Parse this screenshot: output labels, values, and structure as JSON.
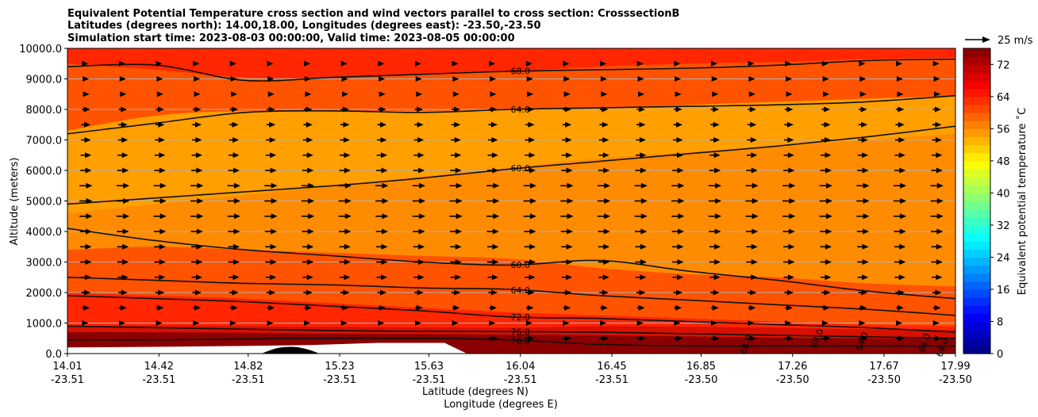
{
  "chart_data": {
    "type": "heatmap",
    "title_lines": [
      "Equivalent Potential Temperature cross section and wind vectors parallel to cross section: CrosssectionB",
      "Latitudes (degrees north): 14.00,18.00, Longitudes (degrees east): -23.50,-23.50",
      "Simulation start time: 2023-08-03 00:00:00, Valid time: 2023-08-05 00:00:00"
    ],
    "xlabel": "Latitude (degrees N)",
    "xlabel2": "Longitude (degrees E)",
    "ylabel": "Altitude (meters)",
    "xlim": [
      14.01,
      17.99
    ],
    "ylim": [
      0,
      10000
    ],
    "x_ticks": [
      {
        "lat": "14.01",
        "lon": "-23.51",
        "value": 14.01
      },
      {
        "lat": "14.42",
        "lon": "-23.51",
        "value": 14.42
      },
      {
        "lat": "14.82",
        "lon": "-23.51",
        "value": 14.82
      },
      {
        "lat": "15.23",
        "lon": "-23.51",
        "value": 15.23
      },
      {
        "lat": "15.63",
        "lon": "-23.51",
        "value": 15.63
      },
      {
        "lat": "16.04",
        "lon": "-23.51",
        "value": 16.04
      },
      {
        "lat": "16.45",
        "lon": "-23.51",
        "value": 16.45
      },
      {
        "lat": "16.85",
        "lon": "-23.50",
        "value": 16.85
      },
      {
        "lat": "17.26",
        "lon": "-23.50",
        "value": 17.26
      },
      {
        "lat": "17.67",
        "lon": "-23.50",
        "value": 17.67
      },
      {
        "lat": "17.99",
        "lon": "-23.50",
        "value": 17.99
      }
    ],
    "y_ticks": [
      {
        "label": "0.0",
        "value": 0
      },
      {
        "label": "1000.0",
        "value": 1000
      },
      {
        "label": "2000.0",
        "value": 2000
      },
      {
        "label": "3000.0",
        "value": 3000
      },
      {
        "label": "4000.0",
        "value": 4000
      },
      {
        "label": "5000.0",
        "value": 5000
      },
      {
        "label": "6000.0",
        "value": 6000
      },
      {
        "label": "7000.0",
        "value": 7000
      },
      {
        "label": "8000.0",
        "value": 8000
      },
      {
        "label": "9000.0",
        "value": 9000
      },
      {
        "label": "10000.0",
        "value": 10000
      }
    ],
    "colorbar": {
      "label": "Equivalent potential temperature ˚C",
      "range": [
        0,
        76
      ],
      "ticks": [
        "0",
        "8",
        "16",
        "24",
        "32",
        "40",
        "48",
        "56",
        "64",
        "72"
      ],
      "tick_values": [
        0,
        8,
        16,
        24,
        32,
        40,
        48,
        56,
        64,
        72
      ]
    },
    "quiver_key": {
      "label": "25 m/s",
      "speed": 25
    },
    "fill_bands": [
      {
        "value": 76,
        "color": "#8b0000",
        "ys": [
          700,
          700,
          680,
          650,
          640,
          620,
          600,
          560,
          520,
          500,
          480
        ]
      },
      {
        "value": 72,
        "color": "#d81000",
        "ys": [
          900,
          920,
          900,
          880,
          860,
          850,
          900,
          880,
          850,
          800,
          780
        ]
      },
      {
        "value": 68,
        "color": "#ff2600",
        "ys": [
          2000,
          1900,
          1800,
          1650,
          1500,
          1350,
          1250,
          1150,
          1050,
          950,
          900
        ]
      },
      {
        "value": 64,
        "color": "#ff5300",
        "ys": [
          3400,
          3500,
          3400,
          3300,
          3200,
          3100,
          2800,
          2600,
          2500,
          2300,
          2200
        ]
      },
      {
        "value": 60,
        "color": "#ff8c00",
        "ys": [
          4600,
          4900,
          5200,
          5500,
          5800,
          6100,
          6400,
          6600,
          6800,
          7000,
          7200
        ]
      },
      {
        "value": 64,
        "color": "#ff5300",
        "ys": [
          7300,
          7800,
          7950,
          7950,
          7950,
          8000,
          8050,
          8150,
          8250,
          8350,
          8450
        ]
      },
      {
        "value": 68,
        "color": "#ff2600",
        "ys": [
          9500,
          9300,
          9050,
          9050,
          9150,
          9250,
          9400,
          9500,
          9550,
          9650,
          9700
        ]
      }
    ],
    "contours": [
      {
        "label": "68.0",
        "label_x": 16.04,
        "ys": [
          9400,
          9450,
          8950,
          9050,
          9150,
          9250,
          9300,
          9350,
          9450,
          9600,
          9650
        ]
      },
      {
        "label": "64.0",
        "label_x": 16.04,
        "ys": [
          7200,
          7550,
          7900,
          7950,
          7900,
          8000,
          8050,
          8100,
          8150,
          8250,
          8450
        ]
      },
      {
        "label": "60.0",
        "label_x": 16.04,
        "ys": [
          4900,
          5100,
          5300,
          5500,
          5750,
          6050,
          6300,
          6550,
          6800,
          7100,
          7450
        ]
      },
      {
        "label": "60.0",
        "label_x": 16.04,
        "ys": [
          4100,
          3700,
          3400,
          3200,
          3000,
          2900,
          3050,
          2700,
          2400,
          2050,
          1800
        ]
      },
      {
        "label": "64.0",
        "label_x": 16.04,
        "ys": [
          2500,
          2400,
          2300,
          2250,
          2150,
          2100,
          1900,
          1750,
          1600,
          1450,
          1250
        ]
      },
      {
        "label": "72.0",
        "label_x": 16.04,
        "ys": [
          1900,
          1800,
          1700,
          1550,
          1400,
          1200,
          1150,
          1050,
          950,
          850,
          700
        ]
      },
      {
        "label": "76.0",
        "label_x": 16.04,
        "ys": [
          900,
          850,
          800,
          750,
          730,
          720,
          700,
          650,
          600,
          550,
          500
        ]
      },
      {
        "label": "76.0",
        "label_x": 16.04,
        "ys": [
          450,
          450,
          480,
          500,
          500,
          450,
          300,
          250,
          250,
          250,
          250
        ]
      }
    ],
    "extra_contour_labels": [
      {
        "label": "68.0",
        "x": 17.05,
        "y": 300
      },
      {
        "label": "68.0",
        "x": 17.37,
        "y": 500
      },
      {
        "label": "64.0",
        "x": 17.57,
        "y": 400
      },
      {
        "label": "64.0",
        "x": 17.85,
        "y": 350
      },
      {
        "label": "64.0",
        "x": 17.93,
        "y": 200
      }
    ],
    "blank_region": {
      "value": "no data",
      "x": [
        14.01,
        14.4,
        14.8,
        15.1,
        15.4,
        15.7,
        15.8
      ],
      "y_top": [
        200,
        220,
        250,
        280,
        350,
        350,
        0
      ]
    },
    "terrain": {
      "x": [
        14.88,
        14.95,
        15.02,
        15.08,
        15.14
      ],
      "y": [
        0,
        180,
        220,
        150,
        0
      ]
    },
    "wind_levels": [
      500,
      1000,
      1500,
      2000,
      2500,
      3000,
      3500,
      4000,
      4500,
      5000,
      5500,
      6000,
      6500,
      7000,
      7500,
      8000,
      8500,
      9000,
      9500
    ],
    "wind_columns": 24,
    "wind_speed_by_level": [
      12,
      4,
      10,
      12,
      14,
      15,
      15,
      16,
      17,
      17,
      17,
      15,
      14,
      13,
      12,
      11,
      9,
      8,
      6
    ]
  }
}
